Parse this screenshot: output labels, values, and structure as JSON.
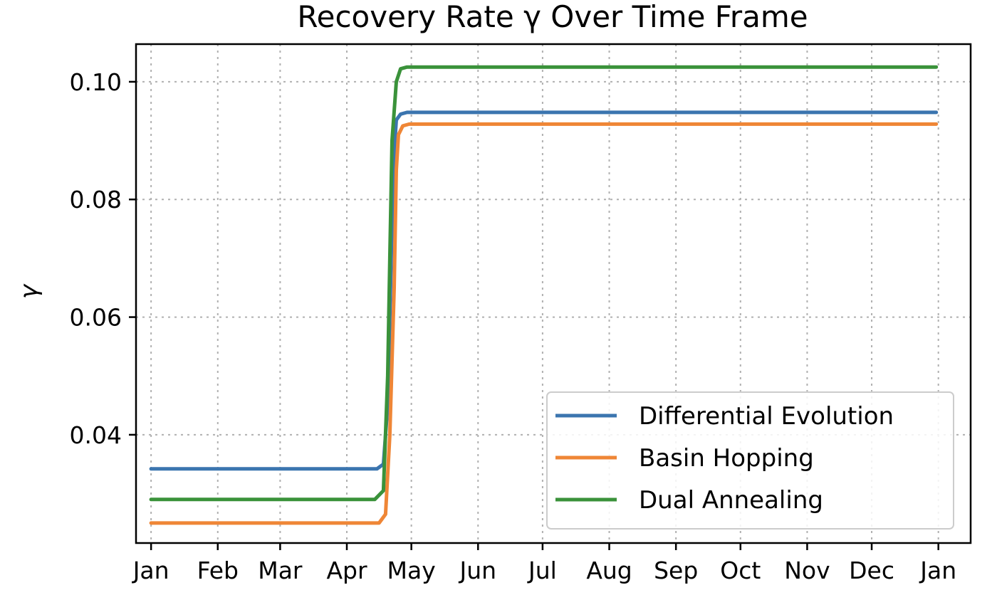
{
  "chart_data": {
    "type": "line",
    "title": "Recovery Rate γ Over Time Frame",
    "xlabel": "",
    "ylabel": "γ",
    "x_ticks": [
      "Jan",
      "Feb",
      "Mar",
      "Apr",
      "May",
      "Jun",
      "Jul",
      "Aug",
      "Sep",
      "Oct",
      "Nov",
      "Dec",
      "Jan"
    ],
    "y_ticks": [
      "0.04",
      "0.06",
      "0.08",
      "0.10"
    ],
    "y_tick_values": [
      0.04,
      0.06,
      0.08,
      0.1
    ],
    "ylim": [
      0.0216,
      0.1064
    ],
    "xlim": [
      "2020-12-25",
      "2021-01-16"
    ],
    "grid": true,
    "legend_position": "lower-right",
    "x_tick_dates": [
      "2020-01-01",
      "2020-02-01",
      "2020-03-01",
      "2020-04-01",
      "2020-05-01",
      "2020-06-01",
      "2020-07-01",
      "2020-08-01",
      "2020-09-01",
      "2020-10-01",
      "2020-11-01",
      "2020-12-01",
      "2021-01-01"
    ],
    "series": [
      {
        "name": "Differential Evolution",
        "color": "#3b75af",
        "x": [
          "2020-01-01",
          "2020-04-15",
          "2020-04-18",
          "2020-04-20",
          "2020-04-21",
          "2020-04-22",
          "2020-04-23",
          "2020-04-24",
          "2020-04-26",
          "2020-04-29",
          "2020-12-31"
        ],
        "y": [
          0.0342,
          0.0342,
          0.035,
          0.045,
          0.06,
          0.076,
          0.088,
          0.0935,
          0.0945,
          0.0948,
          0.0948
        ]
      },
      {
        "name": "Basin Hopping",
        "color": "#ef8636",
        "x": [
          "2020-01-01",
          "2020-04-16",
          "2020-04-19",
          "2020-04-21",
          "2020-04-23",
          "2020-04-24",
          "2020-04-25",
          "2020-04-27",
          "2020-04-30",
          "2020-12-31"
        ],
        "y": [
          0.025,
          0.025,
          0.0265,
          0.04,
          0.065,
          0.085,
          0.091,
          0.0925,
          0.0928,
          0.0928
        ]
      },
      {
        "name": "Dual Annealing",
        "color": "#3a923a",
        "x": [
          "2020-01-01",
          "2020-04-14",
          "2020-04-18",
          "2020-04-20",
          "2020-04-21",
          "2020-04-22",
          "2020-04-24",
          "2020-04-26",
          "2020-04-29",
          "2020-12-31"
        ],
        "y": [
          0.029,
          0.029,
          0.0305,
          0.05,
          0.07,
          0.09,
          0.1,
          0.1022,
          0.1025,
          0.1025
        ]
      }
    ]
  }
}
